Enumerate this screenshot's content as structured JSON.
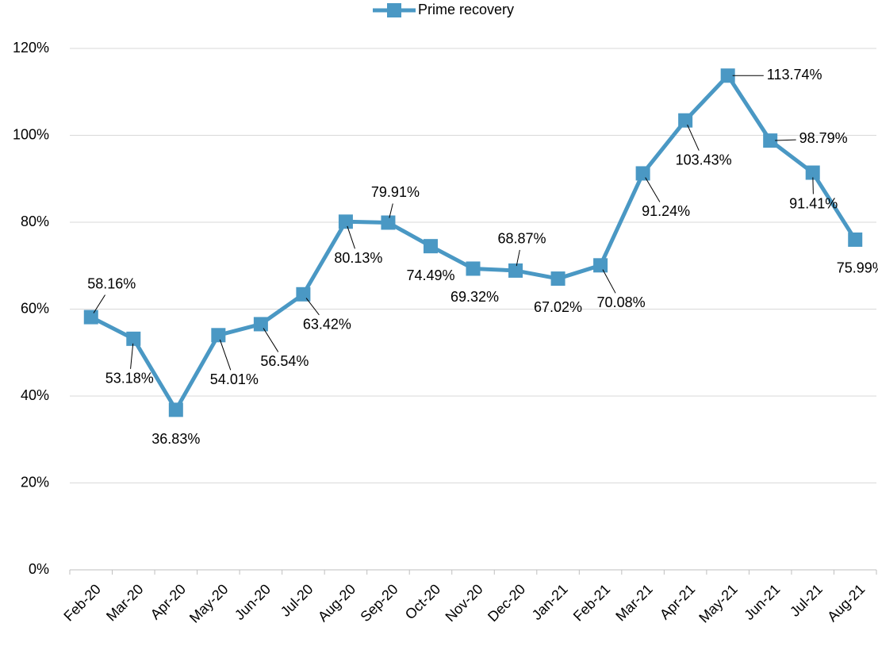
{
  "chart_data": {
    "type": "line",
    "categories": [
      "Feb-20",
      "Mar-20",
      "Apr-20",
      "May-20",
      "Jun-20",
      "Jul-20",
      "Aug-20",
      "Sep-20",
      "Oct-20",
      "Nov-20",
      "Dec-20",
      "Jan-21",
      "Feb-21",
      "Mar-21",
      "Apr-21",
      "May-21",
      "Jun-21",
      "Jul-21",
      "Aug-21"
    ],
    "series": [
      {
        "name": "Prime recovery",
        "color": "#4a98c4",
        "values": [
          58.16,
          53.18,
          36.83,
          54.01,
          56.54,
          63.42,
          80.13,
          79.91,
          74.49,
          69.32,
          68.87,
          67.02,
          70.08,
          91.24,
          103.43,
          113.74,
          98.79,
          91.41,
          75.99
        ],
        "value_labels": [
          "58.16%",
          "53.18%",
          "36.83%",
          "54.01%",
          "56.54%",
          "63.42%",
          "80.13%",
          "79.91%",
          "74.49%",
          "69.32%",
          "68.87%",
          "67.02%",
          "70.08%",
          "91.24%",
          "103.43%",
          "113.74%",
          "98.79%",
          "91.41%",
          "75.99%"
        ]
      }
    ],
    "ylim": [
      0,
      120
    ],
    "yticks": [
      {
        "value": 0,
        "label": "0%"
      },
      {
        "value": 20,
        "label": "20%"
      },
      {
        "value": 40,
        "label": "40%"
      },
      {
        "value": 60,
        "label": "60%"
      },
      {
        "value": 80,
        "label": "80%"
      },
      {
        "value": 100,
        "label": "100%"
      },
      {
        "value": 120,
        "label": "120%"
      }
    ],
    "grid": true,
    "legend": "top"
  }
}
